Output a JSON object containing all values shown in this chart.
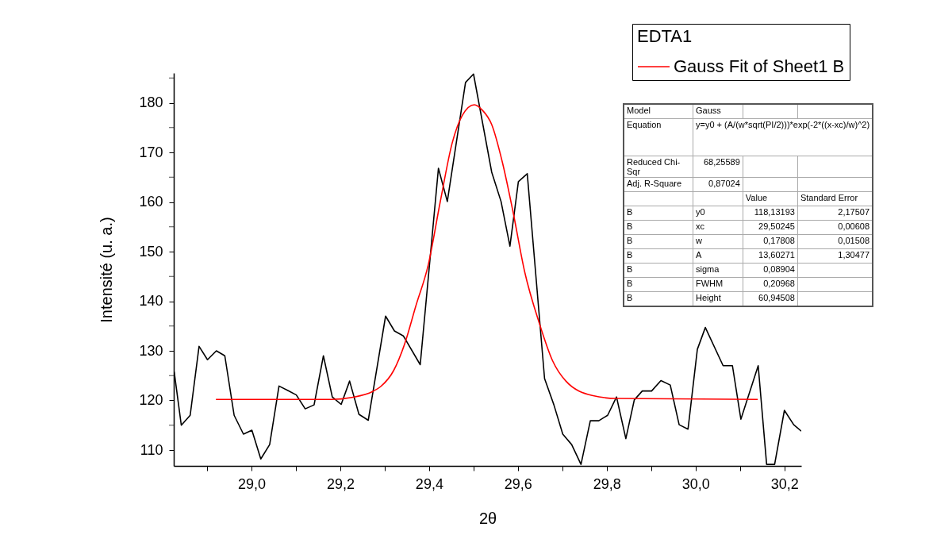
{
  "chart_data": {
    "type": "line",
    "xlabel": "2θ",
    "ylabel": "Intensité (u. a.)",
    "legend_title": "EDTA1",
    "legend": "top right",
    "grid": false,
    "marker": "none",
    "xlim": [
      28.825,
      30.238
    ],
    "ylim": [
      106.8,
      186
    ],
    "xticks": [
      {
        "value": 28.9,
        "label": null
      },
      {
        "value": 29,
        "label": "29,0"
      },
      {
        "value": 29.1,
        "label": null
      },
      {
        "value": 29.2,
        "label": "29,2"
      },
      {
        "value": 29.3,
        "label": null
      },
      {
        "value": 29.4,
        "label": "29,4"
      },
      {
        "value": 29.5,
        "label": null
      },
      {
        "value": 29.6,
        "label": "29,6"
      },
      {
        "value": 29.7,
        "label": null
      },
      {
        "value": 29.8,
        "label": "29,8"
      },
      {
        "value": 29.9,
        "label": null
      },
      {
        "value": 30,
        "label": "30,0"
      },
      {
        "value": 30.1,
        "label": null
      },
      {
        "value": 30.2,
        "label": "30,2"
      }
    ],
    "yticks": [
      110,
      {
        "value": 115,
        "label": null
      },
      120,
      {
        "value": 125,
        "label": null
      },
      130,
      {
        "value": 135,
        "label": null
      },
      140,
      {
        "value": 145,
        "label": null
      },
      150,
      {
        "value": 155,
        "label": null
      },
      160,
      {
        "value": 165,
        "label": null
      },
      170,
      {
        "value": 175,
        "label": null
      },
      180,
      {
        "value": 185,
        "label": null
      }
    ],
    "series": [
      {
        "color": "#000000",
        "x": [
          28.826,
          28.842,
          28.862,
          28.882,
          28.901,
          28.921,
          28.94,
          28.961,
          28.982,
          29.001,
          29.021,
          29.041,
          29.062,
          29.082,
          29.101,
          29.121,
          29.141,
          29.162,
          29.182,
          29.202,
          29.221,
          29.242,
          29.263,
          29.302,
          29.322,
          29.342,
          29.38,
          29.421,
          29.441,
          29.482,
          29.5,
          29.541,
          29.562,
          29.582,
          29.601,
          29.621,
          29.66,
          29.681,
          29.701,
          29.721,
          29.742,
          29.763,
          29.782,
          29.802,
          29.822,
          29.843,
          29.862,
          29.88,
          29.901,
          29.922,
          29.943,
          29.963,
          29.983,
          30.004,
          30.022,
          30.062,
          30.083,
          30.102,
          30.141,
          30.16,
          30.178,
          30.2,
          30.221,
          30.238
        ],
        "values": [
          125.8,
          115.0,
          117.0,
          130.9,
          128.2,
          130.0,
          129.0,
          117.0,
          113.2,
          114.0,
          108.2,
          111.1,
          122.9,
          122.0,
          121.1,
          118.3,
          119.1,
          129.0,
          120.7,
          119.2,
          123.9,
          117.2,
          116.0,
          137.0,
          134.0,
          133.0,
          127.2,
          166.8,
          160.1,
          184.1,
          185.8,
          166.0,
          160.1,
          151.1,
          164.1,
          165.7,
          124.4,
          119.1,
          113.2,
          111.1,
          107.1,
          115.9,
          115.9,
          117.0,
          120.7,
          112.3,
          120.1,
          121.9,
          121.9,
          124.0,
          123.1,
          115.1,
          114.2,
          130.3,
          134.7,
          127.0,
          127.0,
          116.2,
          127.0,
          107.1,
          107.1,
          118.0,
          115.1,
          113.8
        ]
      },
      {
        "name": "Gauss Fit of Sheet1 B",
        "color": "#ff0000",
        "x": [
          28.92,
          29.18,
          29.226,
          29.273,
          29.291,
          29.32,
          29.345,
          29.37,
          29.398,
          29.425,
          29.452,
          29.475,
          29.502,
          29.52,
          29.541,
          29.565,
          29.589,
          29.615,
          29.648,
          29.678,
          29.708,
          29.767,
          29.821,
          30.14
        ],
        "values": [
          120.2,
          120.2,
          120.6,
          121.8,
          122.8,
          126.0,
          131.4,
          139.0,
          147.3,
          160.0,
          171.9,
          177.5,
          179.6,
          178.5,
          175.6,
          168.0,
          158.0,
          146.0,
          135.6,
          128.0,
          123.9,
          121.0,
          120.4,
          120.2
        ]
      }
    ],
    "annotations": [
      "Model",
      "Gauss",
      "Equation",
      "y=y0 + (A/(w*sqrt(PI/2)))*exp(-2*((x-xc)/w)^2)",
      "Reduced Chi-Sqr",
      "68,25589",
      "Adj. R-Square",
      "0,87024",
      "Value",
      "Standard Error",
      "B",
      "y0",
      "118,13193",
      "2,17507",
      "B",
      "xc",
      "29,50245",
      "0,00608",
      "B",
      "w",
      "0,17808",
      "0,01508",
      "B",
      "A",
      "13,60271",
      "1,30477",
      "B",
      "sigma",
      "0,08904",
      "B",
      "FWHM",
      "0,20968",
      "B",
      "Height",
      "60,94508"
    ]
  }
}
